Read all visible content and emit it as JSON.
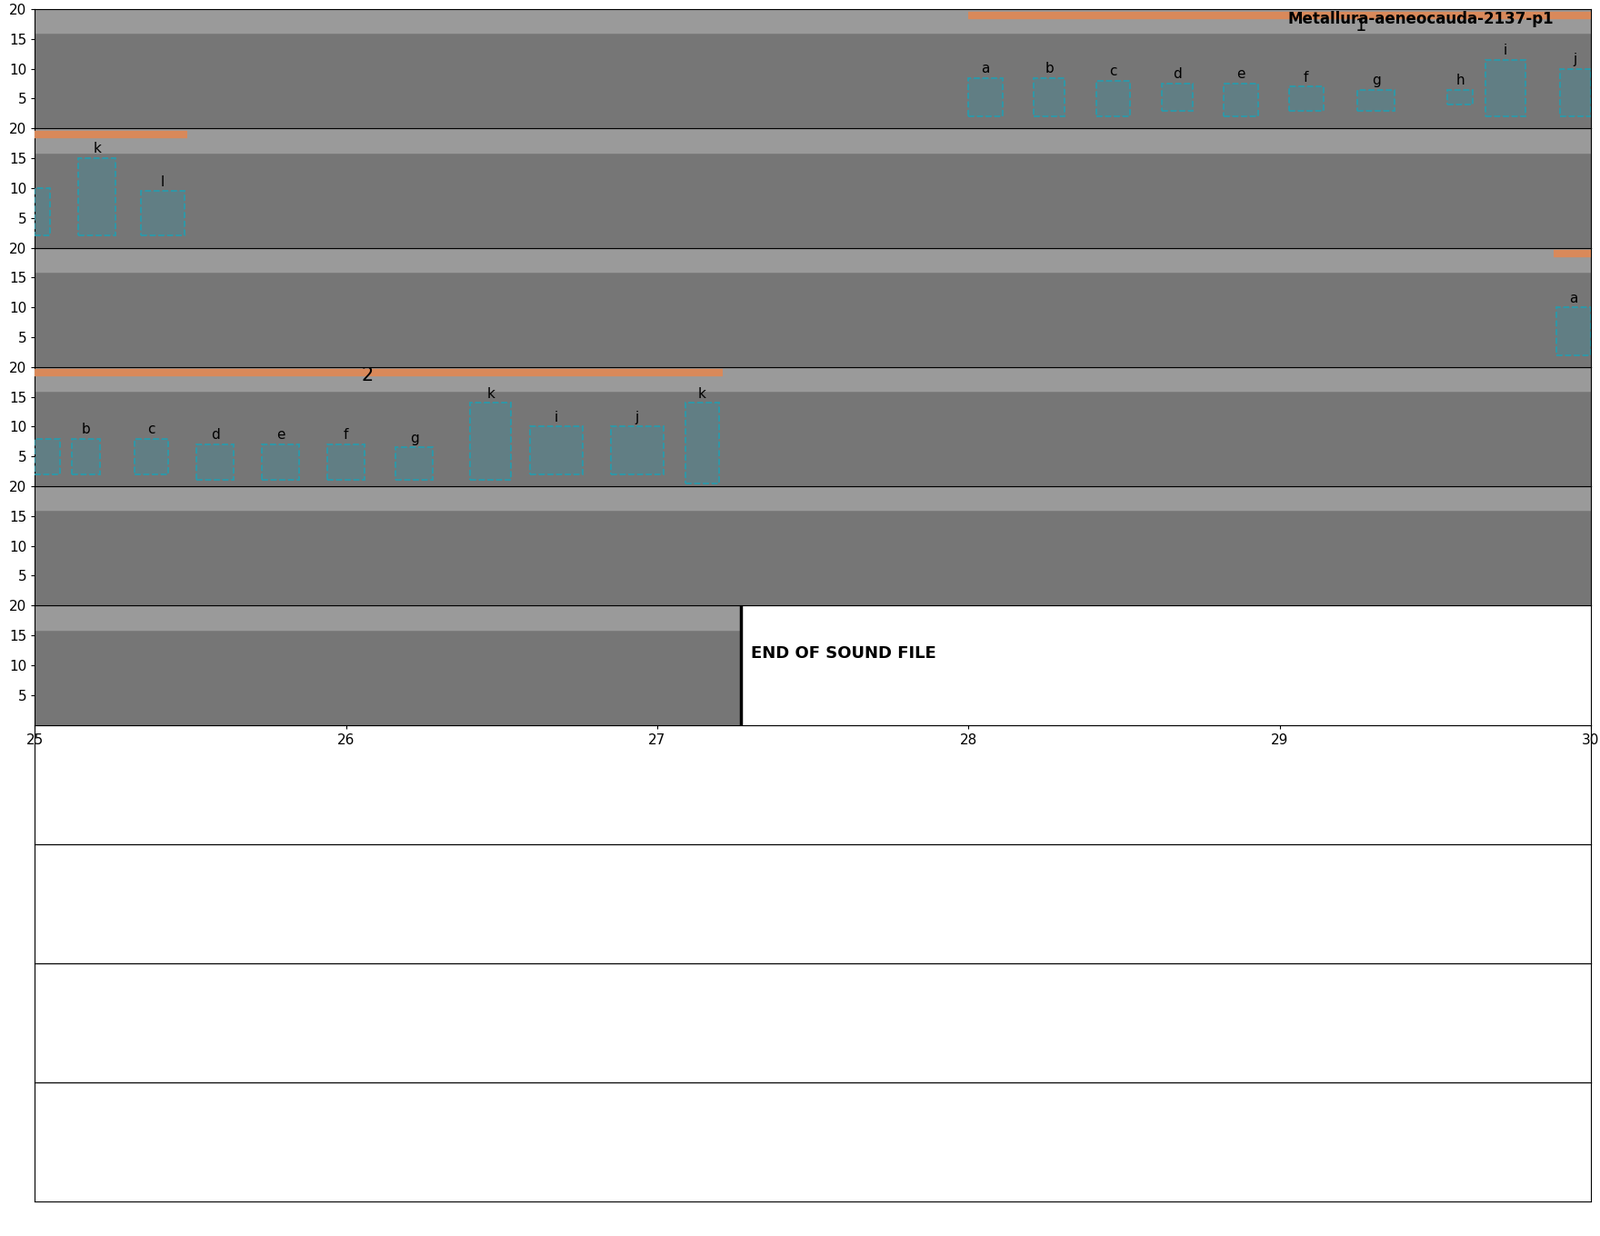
{
  "chart_data": {
    "type": "spectrogram",
    "title": "Metallura-aeneocauda-2137-p1",
    "ylim": [
      0,
      20
    ],
    "yticks": [
      5,
      10,
      15,
      20
    ],
    "end_time": 27.27,
    "end_text": "END OF SOUND FILE",
    "empty_rows": 4,
    "rows": [
      {
        "xlim": [
          0,
          5
        ],
        "bars": [
          {
            "start": 3.0,
            "end": 5.0,
            "label": "1",
            "label_x": 4.26
          }
        ],
        "boxes": [
          {
            "label": "a",
            "start": 3.0,
            "end": 3.11,
            "low": 2,
            "high": 8.5
          },
          {
            "label": "b",
            "start": 3.21,
            "end": 3.31,
            "low": 2,
            "high": 8.5
          },
          {
            "label": "c",
            "start": 3.41,
            "end": 3.52,
            "low": 2,
            "high": 8
          },
          {
            "label": "d",
            "start": 3.62,
            "end": 3.72,
            "low": 3,
            "high": 7.5
          },
          {
            "label": "e",
            "start": 3.82,
            "end": 3.93,
            "low": 2,
            "high": 7.5
          },
          {
            "label": "f",
            "start": 4.03,
            "end": 4.14,
            "low": 3,
            "high": 7
          },
          {
            "label": "g",
            "start": 4.25,
            "end": 4.37,
            "low": 3,
            "high": 6.5
          },
          {
            "label": "h",
            "start": 4.54,
            "end": 4.62,
            "low": 4,
            "high": 6.5
          },
          {
            "label": "i",
            "start": 4.66,
            "end": 4.79,
            "low": 2,
            "high": 11.5
          },
          {
            "label": "j",
            "start": 4.9,
            "end": 5.0,
            "low": 2,
            "high": 10
          }
        ]
      },
      {
        "xlim": [
          5,
          10
        ],
        "bars": [
          {
            "start": 5.0,
            "end": 5.49
          }
        ],
        "boxes": [
          {
            "start": 5.0,
            "end": 5.05,
            "low": 2,
            "high": 10
          },
          {
            "label": "k",
            "start": 5.14,
            "end": 5.26,
            "low": 2,
            "high": 15
          },
          {
            "label": "l",
            "start": 5.34,
            "end": 5.48,
            "low": 2,
            "high": 9.5
          }
        ]
      },
      {
        "xlim": [
          10,
          15
        ],
        "bars": [
          {
            "start": 14.88,
            "end": 15.0
          }
        ],
        "boxes": [
          {
            "label": "a",
            "start": 14.89,
            "end": 15.0,
            "low": 2,
            "high": 10
          }
        ]
      },
      {
        "xlim": [
          15,
          20
        ],
        "bars": [
          {
            "start": 15.0,
            "end": 17.21,
            "label": "2",
            "label_x": 16.07
          }
        ],
        "boxes": [
          {
            "start": 15.0,
            "end": 15.08,
            "low": 2,
            "high": 8
          },
          {
            "label": "b",
            "start": 15.12,
            "end": 15.21,
            "low": 2,
            "high": 8
          },
          {
            "label": "c",
            "start": 15.32,
            "end": 15.43,
            "low": 2,
            "high": 8
          },
          {
            "label": "d",
            "start": 15.52,
            "end": 15.64,
            "low": 1,
            "high": 7
          },
          {
            "label": "e",
            "start": 15.73,
            "end": 15.85,
            "low": 1,
            "high": 7
          },
          {
            "label": "f",
            "start": 15.94,
            "end": 16.06,
            "low": 1,
            "high": 7
          },
          {
            "label": "g",
            "start": 16.16,
            "end": 16.28,
            "low": 1,
            "high": 6.5
          },
          {
            "label": "k",
            "start": 16.4,
            "end": 16.53,
            "low": 1,
            "high": 14
          },
          {
            "label": "i",
            "start": 16.59,
            "end": 16.76,
            "low": 2,
            "high": 10
          },
          {
            "label": "j",
            "start": 16.85,
            "end": 17.02,
            "low": 2,
            "high": 10
          },
          {
            "label": "k",
            "start": 17.09,
            "end": 17.2,
            "low": 0.5,
            "high": 14
          }
        ]
      },
      {
        "xlim": [
          20,
          25
        ],
        "bars": [],
        "boxes": []
      },
      {
        "xlim": [
          25,
          30
        ],
        "xticks": [
          25,
          26,
          27,
          28,
          29,
          30
        ],
        "bars": [],
        "boxes": []
      }
    ]
  }
}
